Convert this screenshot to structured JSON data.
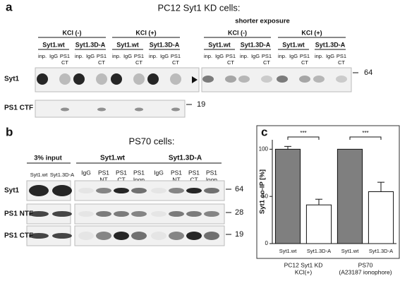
{
  "panel_a": {
    "label": "a",
    "title": "PC12 Syt1 KD cells:",
    "exposure_label": "shorter exposure",
    "conditions": [
      "KCl (-)",
      "KCl (+)",
      "KCl (-)",
      "KCl (+)"
    ],
    "constructs": [
      {
        "name": "Syt1.wt",
        "lanes": [
          [
            "inp."
          ],
          [
            "IgG"
          ],
          [
            "PS1",
            "CT"
          ]
        ]
      },
      {
        "name": "Syt1.3D-A",
        "lanes": [
          [
            "inp."
          ],
          [
            "IgG"
          ],
          [
            "PS1",
            "CT"
          ]
        ]
      },
      {
        "name": "Syt1.wt",
        "lanes": [
          [
            "inp."
          ],
          [
            "IgG"
          ],
          [
            "PS1",
            "CT"
          ]
        ]
      },
      {
        "name": "Syt1.3D-A",
        "lanes": [
          [
            "inp."
          ],
          [
            "IgG"
          ],
          [
            "PS1",
            "CT"
          ]
        ]
      },
      {
        "name": "Syt1.wt",
        "lanes": [
          [
            "inp."
          ],
          [
            "IgG"
          ],
          [
            "PS1",
            "CT"
          ]
        ]
      },
      {
        "name": "Syt1.3D-A",
        "lanes": [
          [
            "inp."
          ],
          [
            "IgG"
          ],
          [
            "PS1",
            "CT"
          ]
        ]
      },
      {
        "name": "Syt1.wt",
        "lanes": [
          [
            "inp."
          ],
          [
            "IgG"
          ],
          [
            "PS1",
            "CT"
          ]
        ]
      },
      {
        "name": "Syt1.3D-A",
        "lanes": [
          [
            "inp."
          ],
          [
            "IgG"
          ],
          [
            "PS1",
            "CT"
          ]
        ]
      }
    ],
    "rows": [
      {
        "label": "Syt1",
        "marker": 64
      },
      {
        "label": "PS1 CTF",
        "marker": 19
      }
    ]
  },
  "panel_b": {
    "label": "b",
    "title": "PS70 cells:",
    "input_header": "3% input",
    "input_lanes": [
      "Syt1.wt",
      "Syt1.3D-A"
    ],
    "constructs": [
      {
        "name": "Syt1.wt",
        "lanes": [
          [
            "IgG"
          ],
          [
            "PS1",
            "NT"
          ],
          [
            "PS1",
            "CT"
          ],
          [
            "PS1",
            "loop"
          ]
        ]
      },
      {
        "name": "Syt1.3D-A",
        "lanes": [
          [
            "IgG"
          ],
          [
            "PS1",
            "NT"
          ],
          [
            "PS1",
            "CT"
          ],
          [
            "PS1",
            "loop"
          ]
        ]
      }
    ],
    "rows": [
      {
        "label": "Syt1",
        "marker": 64
      },
      {
        "label": "PS1 NTF",
        "marker": 28
      },
      {
        "label": "PS1 CTF",
        "marker": 19
      }
    ]
  },
  "chart_data": {
    "type": "bar",
    "panel_label": "c",
    "y_label": "Syt1 co-IP [%]",
    "categories": [
      "Syt1.wt",
      "Syt1.3D-A",
      "Syt1.wt",
      "Syt1.3D-A"
    ],
    "values": [
      100,
      41,
      100,
      55
    ],
    "errors": [
      3,
      6,
      null,
      10
    ],
    "colors": [
      "#7f7f7f",
      "#ffffff",
      "#7f7f7f",
      "#ffffff"
    ],
    "groups": [
      [
        "PC12 Syt1 KD",
        "KCl(+)"
      ],
      [
        "PS70",
        "(A23187 ionophore)"
      ]
    ],
    "significance": [
      "***",
      "***"
    ],
    "ylim": [
      0,
      110
    ],
    "yticks": [
      0,
      50,
      100
    ]
  }
}
